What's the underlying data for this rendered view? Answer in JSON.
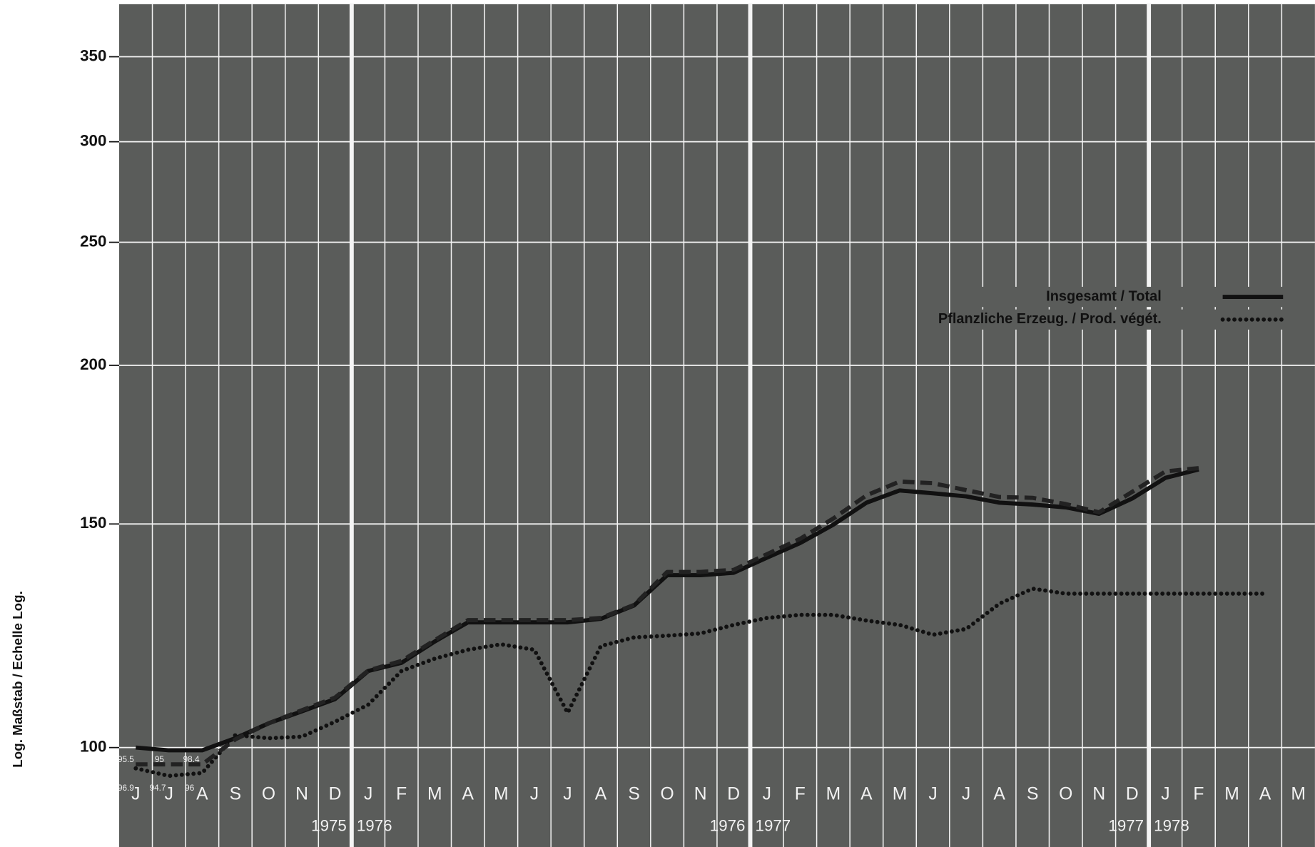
{
  "chart_data": {
    "type": "line",
    "y_axis_label": "Log. Maßstab / Echelle Log.",
    "categories": [
      "J",
      "J",
      "A",
      "S",
      "O",
      "N",
      "D",
      "J",
      "F",
      "M",
      "A",
      "M",
      "J",
      "J",
      "A",
      "S",
      "O",
      "N",
      "D",
      "J",
      "F",
      "M",
      "A",
      "M",
      "J",
      "J",
      "A",
      "S",
      "O",
      "N",
      "D",
      "J",
      "F",
      "M",
      "A",
      "M"
    ],
    "year_labels": [
      "1975",
      "1976",
      "1976",
      "1977",
      "1977",
      "1978"
    ],
    "log_scale": true,
    "grid": true,
    "legend": "upper right",
    "ylim": [
      83.5,
      385
    ],
    "yticks": [
      100,
      150,
      200,
      250,
      300,
      350
    ],
    "series": [
      {
        "name": "Insgesamt / Total",
        "color": "#111111",
        "style": "solid",
        "values": [
          100,
          99.5,
          99.5,
          101.7,
          104.5,
          106.8,
          109.2,
          114.9,
          116.6,
          121.2,
          125.5,
          125.5,
          125.5,
          125.5,
          126.3,
          129.4,
          136.7,
          136.7,
          137.3,
          141.1,
          144.9,
          149.8,
          155.9,
          159.4,
          158.6,
          157.7,
          155.9,
          155.4,
          154.6,
          152.8,
          157.1,
          163.1,
          165.6,
          null,
          null,
          null
        ]
      },
      {
        "name": "Pflanzliche Erzeug. / Prod. végét.",
        "color": "#111111",
        "style": "dotted",
        "values": [
          96.3,
          95,
          95.5,
          102.3,
          101.7,
          102,
          104.8,
          108.1,
          114.9,
          117.5,
          119.4,
          120.6,
          119.4,
          106.5,
          120.2,
          122.1,
          122.5,
          123,
          124.9,
          126.5,
          127.2,
          127.2,
          125.9,
          124.9,
          122.7,
          124,
          129.8,
          133.4,
          132.2,
          132.2,
          132.2,
          132.2,
          132.2,
          132.2,
          132.2,
          null
        ]
      },
      {
        "color": "#222222",
        "style": "dashed",
        "values": [
          97,
          97,
          97,
          101.5,
          104.5,
          107,
          109.5,
          115,
          117,
          121.5,
          126,
          126,
          126,
          126,
          126.5,
          129.5,
          137.5,
          137.5,
          138,
          142,
          146,
          151.5,
          158,
          162,
          161.5,
          159.5,
          157.5,
          157.3,
          155.5,
          153.2,
          159,
          165,
          166,
          null,
          null,
          null
        ]
      }
    ],
    "annotations": [
      "95.5",
      "95",
      "98.4",
      "96.9",
      "94.7",
      "96"
    ]
  }
}
